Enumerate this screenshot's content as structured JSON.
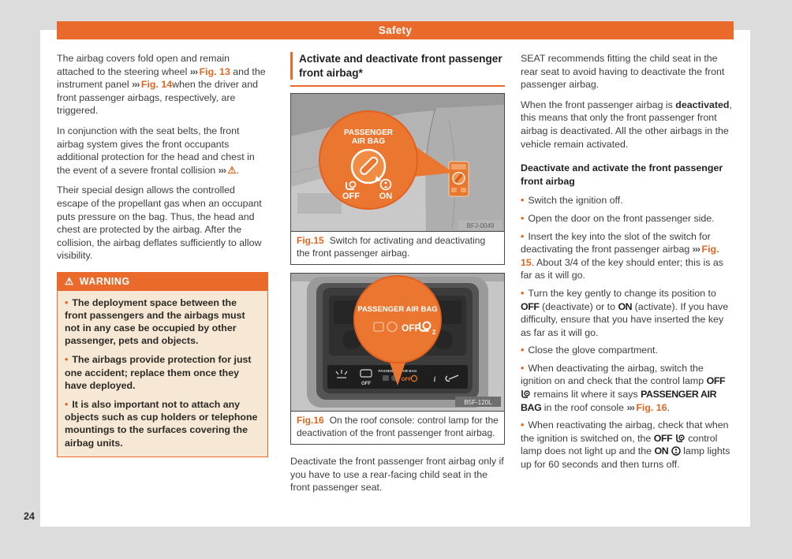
{
  "header": {
    "title": "Safety"
  },
  "page_number": "24",
  "colors": {
    "accent": "#e96a2b",
    "warning_bg": "#f6e8d4",
    "canvas_bg": "#dcdcdc"
  },
  "left_column": {
    "p1": [
      {
        "t": "The airbag covers fold open and remain attached to the steering wheel "
      },
      {
        "t": "››› ",
        "c": "chev"
      },
      {
        "t": "Fig. 13",
        "c": "ref"
      },
      {
        "t": " and the instrument panel "
      },
      {
        "t": "››› ",
        "c": "chev"
      },
      {
        "t": "Fig. 14",
        "c": "ref"
      },
      {
        "t": "when the driver and front passenger airbags, respectively, are triggered."
      }
    ],
    "p2": [
      {
        "t": "In conjunction with the seat belts, the front airbag system gives the front occupants additional protection for the head and chest in the event of a severe frontal collision "
      },
      {
        "t": "››› ",
        "c": "chev"
      },
      {
        "t": "⚠",
        "c": "tri"
      },
      {
        "t": "."
      }
    ],
    "p3": [
      {
        "t": "Their special design allows the controlled escape of the propellant gas when an occupant puts pressure on the bag. Thus, the head and chest are protected by the airbag. After the collision, the airbag deflates sufficiently to allow visibility."
      }
    ],
    "warning": {
      "icon": "warning-triangle-icon",
      "icon_glyph": "⚠",
      "title": "WARNING",
      "items": [
        "The deployment space between the front passengers and the airbags must not in any case be occupied by other passenger, pets and objects.",
        "The airbags provide protection for just one accident; replace them once they have deployed.",
        "It is also important not to attach any objects such as cup holders or telephone mountings to the surfaces covering the airbag units."
      ]
    }
  },
  "middle_column": {
    "heading": "Activate and deactivate front passenger front airbag*",
    "fig15": {
      "label": "Fig.15",
      "caption": "Switch for activating and deactivating the front passenger airbag.",
      "image": {
        "panel_title_line1": "PASSENGER",
        "panel_title_line2": "AIR BAG",
        "off_label": "OFF",
        "on_label": "ON",
        "code": "BFJ-0049"
      }
    },
    "fig16": {
      "label": "Fig.16",
      "caption": "On the roof console: control lamp for the deactivation of the front passenger front airbag.",
      "image": {
        "balloon_title": "PASSENGER AIR BAG",
        "off_label": "OFF",
        "strip_label": "PASSENGER AIR BAG",
        "strip_off_label": "OFF",
        "strip_info_label": "i",
        "code": "B5F-120L"
      }
    },
    "paragraph": [
      {
        "t": "Deactivate the front passenger front airbag only if you have to use a rear-facing child seat in the front passenger seat."
      }
    ]
  },
  "right_column": {
    "p1": [
      {
        "t": "SEAT recommends fitting the child seat in the rear seat to avoid having to deactivate the front passenger airbag."
      }
    ],
    "p2": [
      {
        "t": "When the front passenger airbag is "
      },
      {
        "t": "deactivated",
        "c": "b"
      },
      {
        "t": ", this means that only the front passenger front airbag is deactivated. All the other airbags in the vehicle remain activated."
      }
    ],
    "subheading": "Deactivate and activate the front passenger front airbag",
    "bullets": [
      [
        {
          "t": "Switch the ignition off."
        }
      ],
      [
        {
          "t": "Open the door on the front passenger side."
        }
      ],
      [
        {
          "t": "Insert the key into the slot of the switch for deactivating the front passenger airbag "
        },
        {
          "t": "››› ",
          "c": "chev"
        },
        {
          "t": "Fig. 15",
          "c": "ref"
        },
        {
          "t": ". About 3/4 of the key should enter; this is as far as it will go."
        }
      ],
      [
        {
          "t": "Turn the key gently to change its position to "
        },
        {
          "t": "OFF",
          "c": "cond"
        },
        {
          "t": " (deactivate) or to "
        },
        {
          "t": "ON",
          "c": "cond"
        },
        {
          "t": " (activate). If you have difficulty, ensure that you have inserted the key as far as it will go."
        }
      ],
      [
        {
          "t": "Close the glove compartment."
        }
      ],
      [
        {
          "t": "When deactivating the airbag, switch the ignition on and check that the control lamp "
        },
        {
          "t": "OFF",
          "c": "cond"
        },
        {
          "tpl": "icon-airbag-off",
          "name": "airbag-off-indicator-icon"
        },
        {
          "t": " remains lit where it says "
        },
        {
          "t": "PASSENGER AIR BAG",
          "c": "cond"
        },
        {
          "t": " in the roof console "
        },
        {
          "t": "››› ",
          "c": "chev"
        },
        {
          "t": "Fig. 16",
          "c": "ref"
        },
        {
          "t": "."
        }
      ],
      [
        {
          "t": "When reactivating the airbag, check that when the ignition is switched on, the "
        },
        {
          "t": "OFF",
          "c": "cond"
        },
        {
          "tpl": "icon-airbag-off",
          "name": "airbag-off-indicator-icon"
        },
        {
          "t": " control lamp does not light up and the "
        },
        {
          "t": "ON",
          "c": "cond"
        },
        {
          "tpl": "icon-airbag-on",
          "name": "airbag-on-indicator-icon"
        },
        {
          "t": " lamp lights up for 60 seconds and then turns off."
        }
      ]
    ]
  }
}
